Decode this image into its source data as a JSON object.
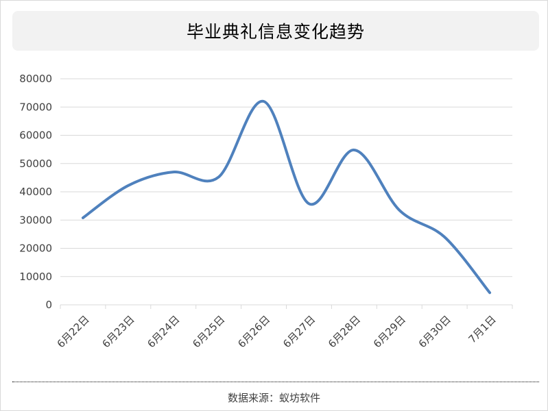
{
  "chart_data": {
    "type": "line",
    "title": "毕业典礼信息变化趋势",
    "categories": [
      "6月22日",
      "6月23日",
      "6月24日",
      "6月25日",
      "6月26日",
      "6月27日",
      "6月28日",
      "6月29日",
      "6月30日",
      "7月1日"
    ],
    "series": [
      {
        "values": [
          30800,
          42200,
          47000,
          45200,
          72000,
          35800,
          54800,
          33500,
          24000,
          4300
        ]
      }
    ],
    "xlabel": "",
    "ylabel": "",
    "ylim": [
      0,
      80000
    ],
    "yticks": [
      0,
      10000,
      20000,
      30000,
      40000,
      50000,
      60000,
      70000,
      80000
    ],
    "grid": true,
    "smooth": true,
    "line_color": "#4f81bd",
    "grid_color": "#d9d9d9"
  },
  "footer": {
    "source": "数据来源：蚁坊软件"
  }
}
